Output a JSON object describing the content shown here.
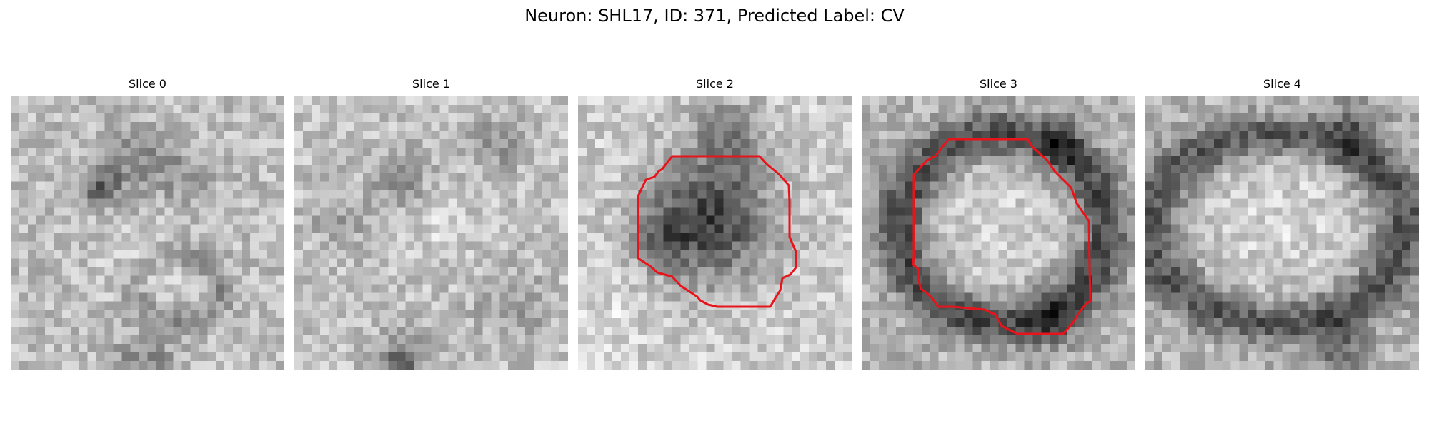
{
  "figure": {
    "title": "Neuron: SHL17, ID: 371, Predicted Label: CV"
  },
  "slices": [
    {
      "title": "Slice 0"
    },
    {
      "title": "Slice 1"
    },
    {
      "title": "Slice 2"
    },
    {
      "title": "Slice 3"
    },
    {
      "title": "Slice 4"
    }
  ],
  "colors": {
    "contour": "#e8141b",
    "background": "#ffffff"
  }
}
